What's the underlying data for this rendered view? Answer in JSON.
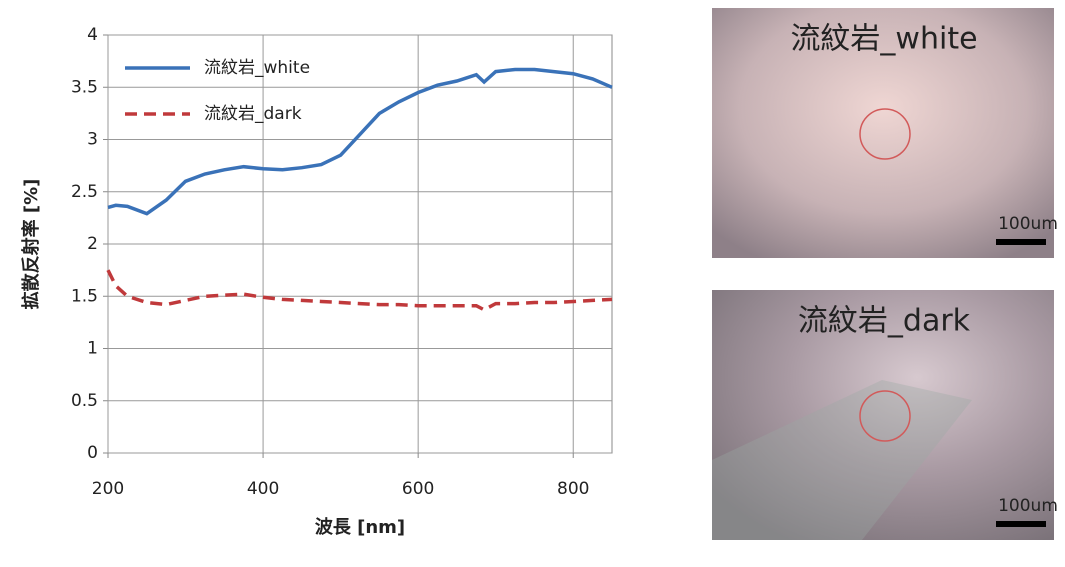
{
  "chart_data": {
    "type": "line",
    "x_label": "波長 [nm]",
    "y_label": "拡散反射率 [%]",
    "x": [
      200,
      210,
      225,
      250,
      275,
      300,
      325,
      350,
      375,
      400,
      425,
      450,
      475,
      500,
      525,
      550,
      575,
      600,
      625,
      650,
      675,
      685,
      700,
      725,
      750,
      775,
      800,
      825,
      850
    ],
    "series": [
      {
        "name": "流紋岩_white",
        "color": "#3a72b8",
        "dash": "solid",
        "values": [
          2.35,
          2.37,
          2.36,
          2.29,
          2.42,
          2.6,
          2.67,
          2.71,
          2.74,
          2.72,
          2.71,
          2.73,
          2.76,
          2.85,
          3.05,
          3.25,
          3.36,
          3.45,
          3.52,
          3.56,
          3.62,
          3.55,
          3.65,
          3.67,
          3.67,
          3.65,
          3.63,
          3.58,
          3.5
        ]
      },
      {
        "name": "流紋岩_dark",
        "color": "#c0393b",
        "dash": "dashed",
        "values": [
          1.75,
          1.6,
          1.5,
          1.44,
          1.42,
          1.46,
          1.5,
          1.51,
          1.52,
          1.49,
          1.47,
          1.46,
          1.45,
          1.44,
          1.43,
          1.42,
          1.42,
          1.41,
          1.41,
          1.41,
          1.41,
          1.37,
          1.43,
          1.43,
          1.44,
          1.44,
          1.45,
          1.46,
          1.47
        ]
      }
    ],
    "xlim": [
      200,
      850
    ],
    "xticks": [
      200,
      400,
      600,
      800
    ],
    "ylim": [
      0,
      4
    ],
    "yticks": [
      0,
      0.5,
      1,
      1.5,
      2,
      2.5,
      3,
      3.5,
      4
    ],
    "grid": true,
    "legend": "upper-left"
  },
  "images": [
    {
      "label": "流紋岩_white",
      "scale": "100um"
    },
    {
      "label": "流紋岩_dark",
      "scale": "100um"
    }
  ]
}
